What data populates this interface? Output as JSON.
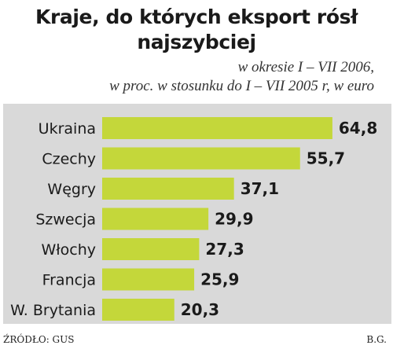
{
  "colors": {
    "bar": "#c4d73a",
    "panel": "#d9d9d9",
    "text": "#1a1a1a"
  },
  "chart_data": {
    "type": "bar",
    "orientation": "horizontal",
    "title": "Kraje, do których eksport rósł najszybciej",
    "subtitle_line1": "w okresie I – VII 2006,",
    "subtitle_line2": "w proc. w stosunku do I – VII 2005 r, w euro",
    "categories": [
      "Ukraina",
      "Czechy",
      "Węgry",
      "Szwecja",
      "Włochy",
      "Francja",
      "W. Brytania"
    ],
    "values": [
      64.8,
      55.7,
      37.1,
      29.9,
      27.3,
      25.9,
      20.3
    ],
    "value_labels": [
      "64,8",
      "55,7",
      "37,1",
      "29,9",
      "27,3",
      "25,9",
      "20,3"
    ],
    "xlim": [
      0,
      70
    ],
    "grid": false,
    "legend": "none"
  },
  "footer": {
    "source": "ŹRÓDŁO: GUS",
    "author": "B.G."
  }
}
